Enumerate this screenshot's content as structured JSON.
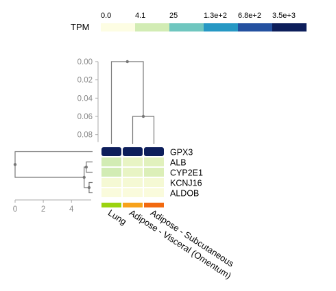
{
  "legend": {
    "title": "TPM",
    "tick_labels": [
      "0.0",
      "4.1",
      "25",
      "1.3e+2",
      "6.8e+2",
      "3.5e+3"
    ],
    "colors": [
      "#fdfde3",
      "#d2ecb4",
      "#6fc6bf",
      "#2698c4",
      "#2451a0",
      "#0d1e5b"
    ]
  },
  "col_axis": {
    "tick_labels": [
      "0.00",
      "0.02",
      "0.04",
      "0.06",
      "0.08"
    ]
  },
  "row_axis": {
    "tick_labels": [
      "0",
      "2",
      "4"
    ]
  },
  "chart_data": {
    "type": "heatmap",
    "value_label": "TPM",
    "rows": [
      "GPX3",
      "ALB",
      "CYP2E1",
      "KCNJ16",
      "ALDOB"
    ],
    "columns": [
      "Lung",
      "Adipose - Visceral (Omentum)",
      "Adipose - Subcutaneous"
    ],
    "column_colors": [
      "#9bd30f",
      "#f7a21b",
      "#f2690f"
    ],
    "color_bins": [
      0.0,
      4.1,
      25,
      130,
      680,
      3500
    ],
    "colors": [
      [
        "#0d1e5b",
        "#0d1e5b",
        "#0d1e5b"
      ],
      [
        "#d2ecb4",
        "#e8f4c4",
        "#e1f1bd"
      ],
      [
        "#d2ecb4",
        "#e8f4c4",
        "#dcefb8"
      ],
      [
        "#f5f9d4",
        "#f5f9d4",
        "#f5f9d4"
      ],
      [
        "#fafbdc",
        "#fafbdc",
        "#fafbdc"
      ]
    ],
    "col_dendrogram": {
      "axis_range": [
        0.0,
        0.09
      ],
      "merges": [
        {
          "left": "Adipose - Visceral (Omentum)",
          "right": "Adipose - Subcutaneous",
          "height": 0.06
        },
        {
          "left": "Lung",
          "right": "cluster-1",
          "height": 0.0
        }
      ]
    },
    "row_dendrogram": {
      "axis_range": [
        0,
        5.4
      ],
      "merges": [
        {
          "left": "KCNJ16",
          "right": "ALDOB",
          "height": 0.15
        },
        {
          "left": "ALB",
          "right": "CYP2E1",
          "height": 0.35
        },
        {
          "left": "cluster-2",
          "right": "cluster-1",
          "height": 0.5
        },
        {
          "left": "GPX3",
          "right": "cluster-3",
          "height": 5.4
        }
      ]
    }
  }
}
